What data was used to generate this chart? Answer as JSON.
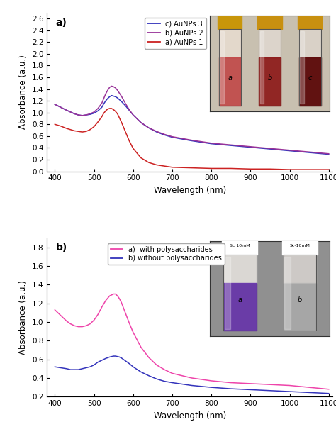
{
  "panel_a": {
    "title": "a)",
    "xlabel": "Wavelength (nm)",
    "ylabel": "Absorbance (a.u.)",
    "xlim": [
      380,
      1110
    ],
    "ylim": [
      0.0,
      2.7
    ],
    "yticks": [
      0.0,
      0.2,
      0.4,
      0.6,
      0.8,
      1.0,
      1.2,
      1.4,
      1.6,
      1.8,
      2.0,
      2.2,
      2.4,
      2.6
    ],
    "xticks": [
      400,
      500,
      600,
      700,
      800,
      900,
      1000,
      1100
    ],
    "legend": [
      "c) AuNPs 3",
      "b) AuNPs 2",
      "a) AuNPs 1"
    ],
    "colors": [
      "#3333bb",
      "#993399",
      "#cc2222"
    ],
    "curves": {
      "c_x": [
        400,
        415,
        430,
        440,
        450,
        460,
        470,
        480,
        490,
        500,
        510,
        520,
        525,
        530,
        535,
        540,
        545,
        550,
        555,
        560,
        570,
        580,
        590,
        600,
        620,
        640,
        660,
        680,
        700,
        750,
        800,
        850,
        900,
        950,
        1000,
        1050,
        1100
      ],
      "c_y": [
        1.14,
        1.09,
        1.04,
        1.01,
        0.98,
        0.96,
        0.95,
        0.96,
        0.97,
        0.99,
        1.03,
        1.09,
        1.15,
        1.2,
        1.24,
        1.27,
        1.29,
        1.28,
        1.27,
        1.25,
        1.19,
        1.12,
        1.04,
        0.96,
        0.83,
        0.74,
        0.67,
        0.62,
        0.58,
        0.52,
        0.47,
        0.44,
        0.41,
        0.38,
        0.35,
        0.32,
        0.29
      ],
      "b_x": [
        400,
        415,
        430,
        440,
        450,
        460,
        470,
        480,
        490,
        500,
        510,
        520,
        525,
        530,
        535,
        540,
        545,
        550,
        555,
        560,
        570,
        580,
        590,
        600,
        620,
        640,
        660,
        680,
        700,
        750,
        800,
        850,
        900,
        950,
        1000,
        1050,
        1100
      ],
      "b_y": [
        1.14,
        1.09,
        1.04,
        1.01,
        0.98,
        0.96,
        0.95,
        0.96,
        0.98,
        1.01,
        1.07,
        1.16,
        1.24,
        1.32,
        1.38,
        1.43,
        1.45,
        1.44,
        1.42,
        1.38,
        1.28,
        1.16,
        1.05,
        0.96,
        0.83,
        0.74,
        0.68,
        0.63,
        0.59,
        0.53,
        0.48,
        0.45,
        0.42,
        0.39,
        0.36,
        0.33,
        0.3
      ],
      "a_x": [
        400,
        415,
        430,
        440,
        450,
        460,
        470,
        480,
        490,
        500,
        510,
        520,
        525,
        530,
        535,
        540,
        545,
        550,
        555,
        560,
        570,
        580,
        590,
        600,
        620,
        640,
        660,
        680,
        700,
        750,
        800,
        850,
        900,
        950,
        1000,
        1050,
        1100
      ],
      "a_y": [
        0.8,
        0.77,
        0.73,
        0.71,
        0.69,
        0.68,
        0.67,
        0.68,
        0.71,
        0.76,
        0.84,
        0.93,
        0.99,
        1.03,
        1.06,
        1.07,
        1.07,
        1.05,
        1.02,
        0.98,
        0.84,
        0.68,
        0.52,
        0.39,
        0.23,
        0.15,
        0.11,
        0.09,
        0.07,
        0.06,
        0.05,
        0.05,
        0.04,
        0.04,
        0.03,
        0.03,
        0.03
      ]
    },
    "inset": {
      "bg_color": "#c8c0b0",
      "tubes": [
        {
          "label": "a",
          "top_color": "#e8ddd0",
          "liq_color": "#c04040",
          "cap_color": "#c8960a",
          "liq_alpha": 0.85
        },
        {
          "label": "b",
          "top_color": "#e0d8d0",
          "liq_color": "#8b1515",
          "cap_color": "#c89010",
          "liq_alpha": 0.9
        },
        {
          "label": "c",
          "top_color": "#ddd5cc",
          "liq_color": "#5c0808",
          "cap_color": "#c89010",
          "liq_alpha": 0.95
        }
      ]
    }
  },
  "panel_b": {
    "title": "b)",
    "xlabel": "Wavelength (nm)",
    "ylabel": "Absorbance (a.u.)",
    "xlim": [
      380,
      1110
    ],
    "ylim": [
      0.2,
      1.9
    ],
    "yticks": [
      0.2,
      0.4,
      0.6,
      0.8,
      1.0,
      1.2,
      1.4,
      1.6,
      1.8
    ],
    "xticks": [
      400,
      500,
      600,
      700,
      800,
      900,
      1000,
      1100
    ],
    "legend": [
      "a)  with polysaccharides",
      "b) without polysaccharides"
    ],
    "colors": [
      "#ee44aa",
      "#3333bb"
    ],
    "curves": {
      "a_x": [
        400,
        415,
        430,
        440,
        450,
        460,
        470,
        480,
        490,
        500,
        510,
        520,
        530,
        540,
        550,
        555,
        560,
        565,
        570,
        580,
        590,
        600,
        620,
        640,
        660,
        680,
        700,
        750,
        800,
        850,
        900,
        950,
        1000,
        1050,
        1100
      ],
      "a_y": [
        1.13,
        1.07,
        1.01,
        0.98,
        0.96,
        0.95,
        0.95,
        0.96,
        0.98,
        1.02,
        1.08,
        1.16,
        1.23,
        1.28,
        1.3,
        1.3,
        1.28,
        1.25,
        1.21,
        1.1,
        0.99,
        0.89,
        0.73,
        0.62,
        0.54,
        0.49,
        0.45,
        0.4,
        0.37,
        0.35,
        0.34,
        0.33,
        0.32,
        0.3,
        0.28
      ],
      "b_x": [
        400,
        415,
        430,
        440,
        450,
        460,
        470,
        480,
        490,
        500,
        510,
        520,
        530,
        540,
        550,
        555,
        560,
        565,
        570,
        580,
        590,
        600,
        620,
        640,
        660,
        680,
        700,
        750,
        800,
        850,
        900,
        950,
        1000,
        1050,
        1100
      ],
      "b_y": [
        0.52,
        0.51,
        0.5,
        0.49,
        0.49,
        0.49,
        0.5,
        0.51,
        0.52,
        0.54,
        0.57,
        0.59,
        0.61,
        0.625,
        0.635,
        0.635,
        0.63,
        0.625,
        0.615,
        0.585,
        0.555,
        0.52,
        0.465,
        0.425,
        0.39,
        0.365,
        0.35,
        0.32,
        0.3,
        0.285,
        0.275,
        0.265,
        0.255,
        0.245,
        0.235
      ]
    },
    "inset": {
      "bg_color": "#909090",
      "tubes": [
        {
          "label": "a",
          "top_color": "#e8e4e0",
          "liq_color": "#6633aa",
          "cap_color": "#ffffff",
          "liq_alpha": 0.9
        },
        {
          "label": "b",
          "top_color": "#d8d4d0",
          "liq_color": "#b0b0b0",
          "cap_color": "#ffffff",
          "liq_alpha": 0.7
        }
      ]
    }
  }
}
